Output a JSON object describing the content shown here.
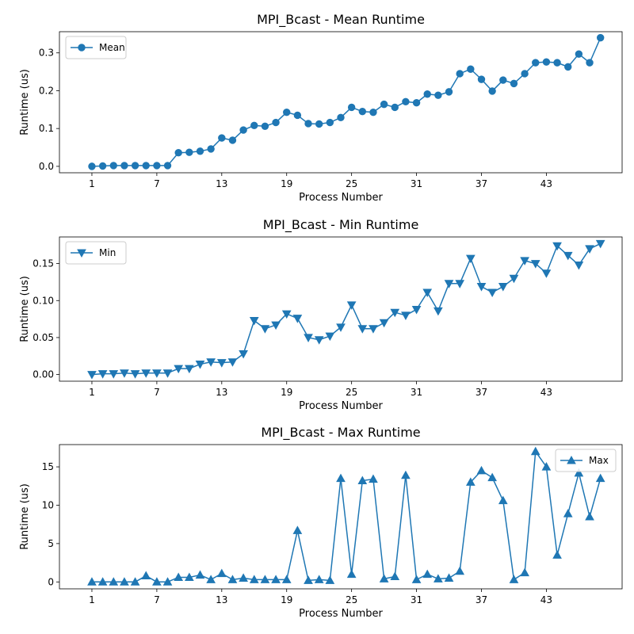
{
  "colors": {
    "series": "#1f77b4",
    "axes": "#000000",
    "legend_border": "#cccccc"
  },
  "chart_data": [
    {
      "type": "line",
      "title": "MPI_Bcast - Mean Runtime",
      "xlabel": "Process Number",
      "ylabel": "Runtime (us)",
      "marker": "circle",
      "legend": "upper-left",
      "xlim": [
        -2,
        50
      ],
      "ylim": [
        -0.017,
        0.356
      ],
      "xticks": [
        1,
        7,
        13,
        19,
        25,
        31,
        37,
        43
      ],
      "yticks": [
        0.0,
        0.1,
        0.2,
        0.3
      ],
      "ytick_labels": [
        "0.0",
        "0.1",
        "0.2",
        "0.3"
      ],
      "series": [
        {
          "name": "Mean",
          "x": [
            1,
            2,
            3,
            4,
            5,
            6,
            7,
            8,
            9,
            10,
            11,
            12,
            13,
            14,
            15,
            16,
            17,
            18,
            19,
            20,
            21,
            22,
            23,
            24,
            25,
            26,
            27,
            28,
            29,
            30,
            31,
            32,
            33,
            34,
            35,
            36,
            37,
            38,
            39,
            40,
            41,
            42,
            43,
            44,
            45,
            46,
            47,
            48
          ],
          "y": [
            0.0,
            0.001,
            0.002,
            0.002,
            0.002,
            0.002,
            0.002,
            0.002,
            0.036,
            0.037,
            0.04,
            0.046,
            0.075,
            0.069,
            0.096,
            0.108,
            0.106,
            0.116,
            0.143,
            0.135,
            0.113,
            0.112,
            0.116,
            0.129,
            0.156,
            0.145,
            0.143,
            0.164,
            0.156,
            0.171,
            0.168,
            0.191,
            0.188,
            0.197,
            0.245,
            0.257,
            0.23,
            0.199,
            0.228,
            0.219,
            0.245,
            0.274,
            0.276,
            0.274,
            0.263,
            0.297,
            0.274,
            0.34
          ]
        }
      ]
    },
    {
      "type": "line",
      "title": "MPI_Bcast - Min Runtime",
      "xlabel": "Process Number",
      "ylabel": "Runtime (us)",
      "marker": "triangle-down",
      "legend": "upper-left",
      "xlim": [
        -2,
        50
      ],
      "ylim": [
        -0.009,
        0.186
      ],
      "xticks": [
        1,
        7,
        13,
        19,
        25,
        31,
        37,
        43
      ],
      "yticks": [
        0.0,
        0.05,
        0.1,
        0.15
      ],
      "ytick_labels": [
        "0.00",
        "0.05",
        "0.10",
        "0.15"
      ],
      "series": [
        {
          "name": "Min",
          "x": [
            1,
            2,
            3,
            4,
            5,
            6,
            7,
            8,
            9,
            10,
            11,
            12,
            13,
            14,
            15,
            16,
            17,
            18,
            19,
            20,
            21,
            22,
            23,
            24,
            25,
            26,
            27,
            28,
            29,
            30,
            31,
            32,
            33,
            34,
            35,
            36,
            37,
            38,
            39,
            40,
            41,
            42,
            43,
            44,
            45,
            46,
            47,
            48
          ],
          "y": [
            0.0,
            0.001,
            0.001,
            0.002,
            0.001,
            0.002,
            0.002,
            0.002,
            0.008,
            0.008,
            0.014,
            0.017,
            0.016,
            0.017,
            0.028,
            0.073,
            0.062,
            0.067,
            0.082,
            0.076,
            0.05,
            0.047,
            0.052,
            0.064,
            0.094,
            0.062,
            0.062,
            0.07,
            0.084,
            0.08,
            0.088,
            0.111,
            0.086,
            0.123,
            0.123,
            0.157,
            0.119,
            0.111,
            0.119,
            0.13,
            0.154,
            0.15,
            0.137,
            0.174,
            0.161,
            0.148,
            0.17,
            0.177
          ]
        }
      ]
    },
    {
      "type": "line",
      "title": "MPI_Bcast - Max Runtime",
      "xlabel": "Process Number",
      "ylabel": "Runtime (us)",
      "marker": "triangle-up",
      "legend": "upper-right",
      "xlim": [
        -2,
        50
      ],
      "ylim": [
        -0.9,
        17.9
      ],
      "xticks": [
        1,
        7,
        13,
        19,
        25,
        31,
        37,
        43
      ],
      "yticks": [
        0,
        5,
        10,
        15
      ],
      "ytick_labels": [
        "0",
        "5",
        "10",
        "15"
      ],
      "series": [
        {
          "name": "Max",
          "x": [
            1,
            2,
            3,
            4,
            5,
            6,
            7,
            8,
            9,
            10,
            11,
            12,
            13,
            14,
            15,
            16,
            17,
            18,
            19,
            20,
            21,
            22,
            23,
            24,
            25,
            26,
            27,
            28,
            29,
            30,
            31,
            32,
            33,
            34,
            35,
            36,
            37,
            38,
            39,
            40,
            41,
            42,
            43,
            44,
            45,
            46,
            47,
            48
          ],
          "y": [
            0.0,
            0.0,
            0.0,
            0.0,
            0.0,
            0.8,
            0.0,
            0.0,
            0.6,
            0.6,
            0.9,
            0.3,
            1.1,
            0.3,
            0.5,
            0.3,
            0.3,
            0.3,
            0.3,
            6.7,
            0.2,
            0.3,
            0.2,
            13.5,
            1.0,
            13.2,
            13.4,
            0.4,
            0.7,
            13.9,
            0.3,
            1.0,
            0.4,
            0.5,
            1.4,
            13.0,
            14.5,
            13.6,
            10.6,
            0.3,
            1.2,
            17.0,
            15.0,
            3.5,
            8.9,
            14.2,
            8.5,
            13.5
          ]
        }
      ]
    }
  ]
}
